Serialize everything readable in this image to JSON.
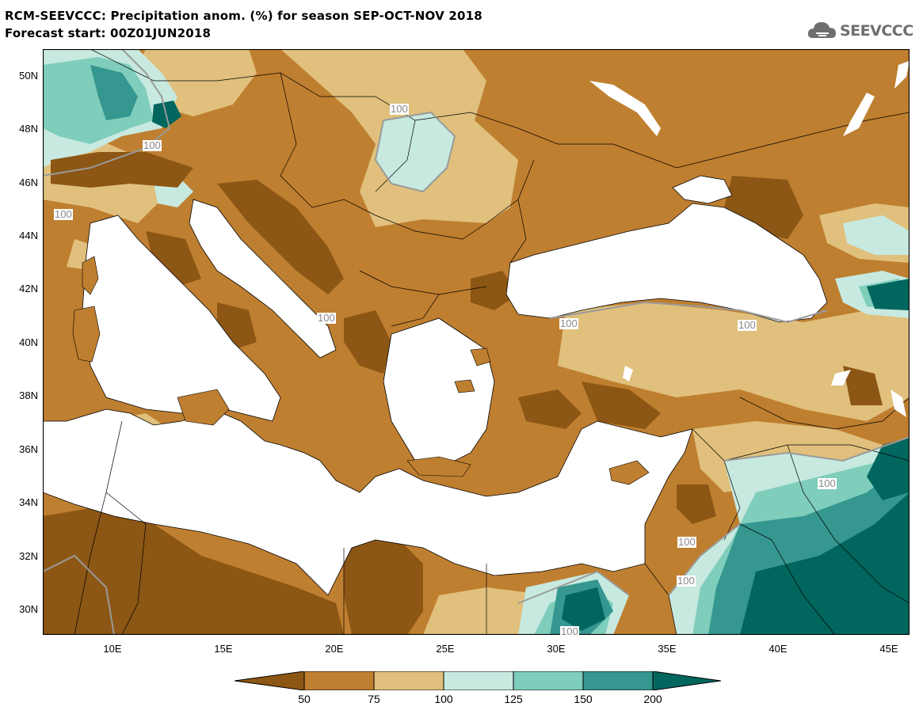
{
  "header": {
    "title": "RCM-SEEVCCC: Precipitation anom. (%) for season SEP-OCT-NOV 2018",
    "subtitle": "Forecast start: 00Z01JUN2018"
  },
  "logo": {
    "icon": "cloud-icon",
    "text": "SEEVCCC",
    "color": "#6f6f6f"
  },
  "map": {
    "lat_labels": [
      "50N",
      "48N",
      "46N",
      "44N",
      "42N",
      "40N",
      "38N",
      "36N",
      "34N",
      "32N",
      "30N"
    ],
    "lon_labels": [
      "10E",
      "15E",
      "20E",
      "25E",
      "30E",
      "35E",
      "40E",
      "45E"
    ],
    "lon_range": [
      7,
      46
    ],
    "lat_range": [
      29,
      51
    ],
    "contour_labels": [
      "100",
      "100",
      "100",
      "100",
      "100",
      "100",
      "100",
      "100",
      "100",
      "100"
    ],
    "land_color": "#c9893b",
    "sea_color": "#ffffff"
  },
  "colorbar": {
    "labels": [
      "50",
      "75",
      "100",
      "125",
      "150",
      "200"
    ],
    "colors": [
      "#8c5614",
      "#bf7f30",
      "#e0c07c",
      "#c7e9e0",
      "#7fcdbb",
      "#35978f",
      "#01665e"
    ]
  }
}
